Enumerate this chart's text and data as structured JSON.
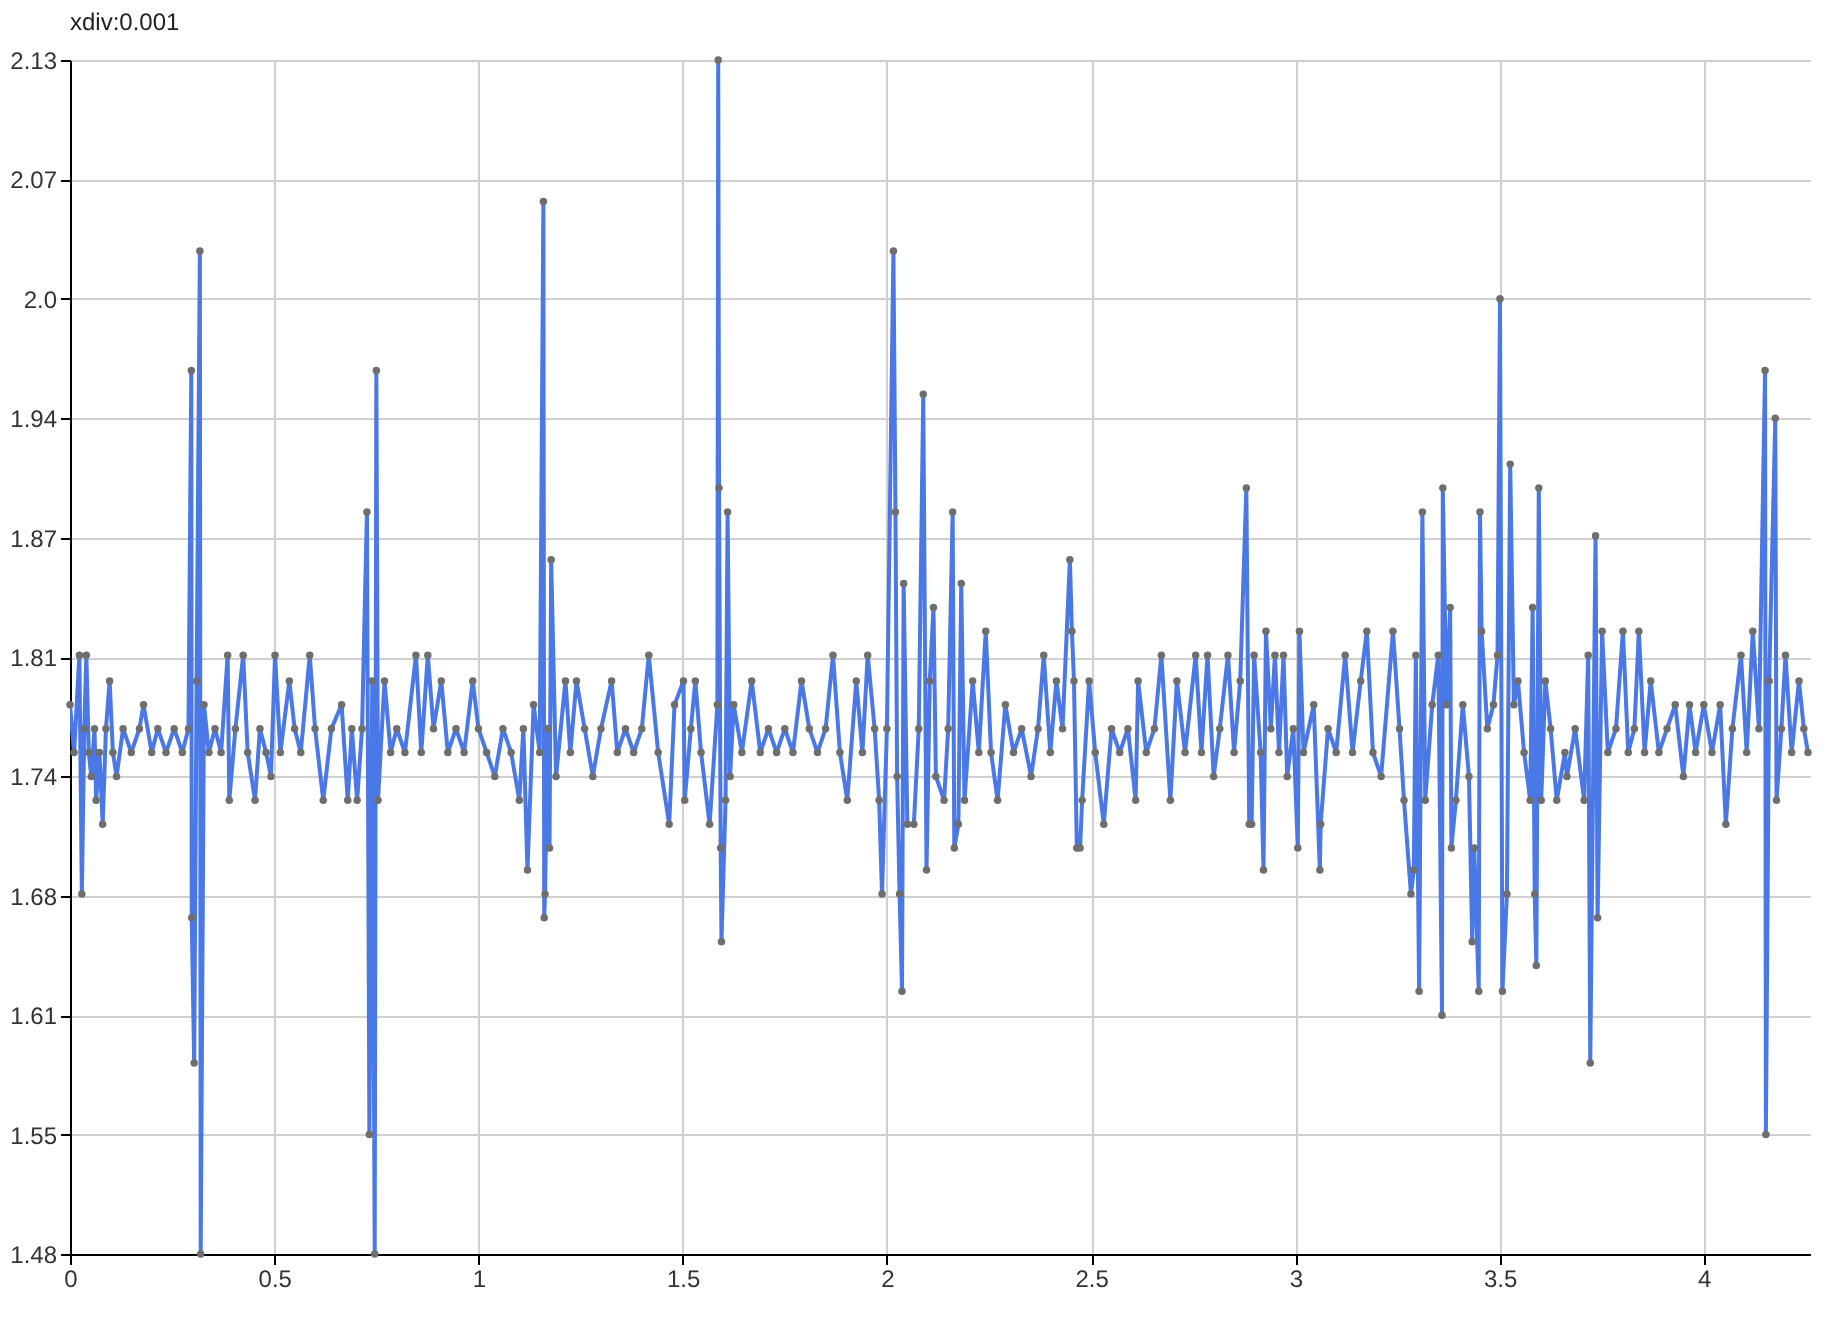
{
  "chart_data": {
    "type": "line",
    "annotations": [
      "xdiv:0.001"
    ],
    "x": [
      0,
      0.01,
      0.023,
      0.029,
      0.035,
      0.04,
      0.046,
      0.052,
      0.06,
      0.064,
      0.072,
      0.08,
      0.088,
      0.097,
      0.105,
      0.114,
      0.13,
      0.15,
      0.17,
      0.18,
      0.2,
      0.215,
      0.235,
      0.255,
      0.275,
      0.29,
      0.297,
      0.298,
      0.304,
      0.31,
      0.318,
      0.32,
      0.328,
      0.34,
      0.355,
      0.37,
      0.386,
      0.39,
      0.405,
      0.424,
      0.435,
      0.453,
      0.465,
      0.48,
      0.492,
      0.502,
      0.515,
      0.537,
      0.55,
      0.565,
      0.587,
      0.6,
      0.62,
      0.64,
      0.665,
      0.68,
      0.69,
      0.703,
      0.715,
      0.727,
      0.733,
      0.74,
      0.746,
      0.75,
      0.754,
      0.77,
      0.785,
      0.8,
      0.82,
      0.847,
      0.86,
      0.876,
      0.89,
      0.909,
      0.925,
      0.945,
      0.965,
      0.986,
      1,
      1.02,
      1.04,
      1.06,
      1.08,
      1.1,
      1.11,
      1.12,
      1.135,
      1.15,
      1.159,
      1.161,
      1.163,
      1.17,
      1.174,
      1.178,
      1.19,
      1.213,
      1.225,
      1.24,
      1.26,
      1.28,
      1.3,
      1.326,
      1.34,
      1.36,
      1.38,
      1.4,
      1.417,
      1.44,
      1.467,
      1.48,
      1.502,
      1.505,
      1.52,
      1.531,
      1.545,
      1.566,
      1.585,
      1.587,
      1.589,
      1.593,
      1.595,
      1.605,
      1.61,
      1.616,
      1.625,
      1.645,
      1.669,
      1.69,
      1.71,
      1.73,
      1.75,
      1.77,
      1.791,
      1.81,
      1.83,
      1.85,
      1.868,
      1.885,
      1.903,
      1.925,
      1.94,
      1.953,
      1.97,
      1.981,
      1.988,
      2,
      2.016,
      2.021,
      2.025,
      2.031,
      2.037,
      2.041,
      2.05,
      2.066,
      2.078,
      2.089,
      2.097,
      2.105,
      2.114,
      2.12,
      2.14,
      2.15,
      2.161,
      2.165,
      2.175,
      2.182,
      2.19,
      2.21,
      2.225,
      2.242,
      2.255,
      2.271,
      2.29,
      2.31,
      2.33,
      2.353,
      2.37,
      2.384,
      2.4,
      2.415,
      2.43,
      2.448,
      2.453,
      2.458,
      2.465,
      2.473,
      2.478,
      2.495,
      2.51,
      2.531,
      2.55,
      2.57,
      2.59,
      2.609,
      2.615,
      2.635,
      2.655,
      2.672,
      2.694,
      2.71,
      2.73,
      2.756,
      2.77,
      2.785,
      2.8,
      2.815,
      2.835,
      2.85,
      2.865,
      2.88,
      2.887,
      2.893,
      2.899,
      2.915,
      2.922,
      2.928,
      2.94,
      2.95,
      2.96,
      2.971,
      2.98,
      2.995,
      3.006,
      3.01,
      3.02,
      3.045,
      3.06,
      3.062,
      3.08,
      3.1,
      3.122,
      3.14,
      3.16,
      3.175,
      3.19,
      3.21,
      3.239,
      3.255,
      3.266,
      3.283,
      3.29,
      3.295,
      3.303,
      3.311,
      3.318,
      3.335,
      3.35,
      3.359,
      3.361,
      3.37,
      3.379,
      3.382,
      3.393,
      3.41,
      3.425,
      3.433,
      3.438,
      3.449,
      3.452,
      3.456,
      3.47,
      3.485,
      3.495,
      3.501,
      3.507,
      3.518,
      3.526,
      3.535,
      3.545,
      3.56,
      3.575,
      3.581,
      3.586,
      3.59,
      3.596,
      3.602,
      3.612,
      3.625,
      3.64,
      3.66,
      3.665,
      3.685,
      3.707,
      3.717,
      3.722,
      3.735,
      3.74,
      3.751,
      3.765,
      3.785,
      3.802,
      3.815,
      3.83,
      3.841,
      3.855,
      3.87,
      3.89,
      3.91,
      3.93,
      3.95,
      3.965,
      3.98,
      4,
      4.02,
      4.04,
      4.054,
      4.07,
      4.091,
      4.105,
      4.12,
      4.135,
      4.15,
      4.152,
      4.16,
      4.175,
      4.178,
      4.19,
      4.2,
      4.215,
      4.233,
      4.245,
      4.255
    ],
    "series": [
      {
        "color": "#4a78e6",
        "values": [
          1.779,
          1.753,
          1.806,
          1.676,
          1.766,
          1.806,
          1.753,
          1.74,
          1.766,
          1.727,
          1.753,
          1.714,
          1.766,
          1.792,
          1.753,
          1.74,
          1.766,
          1.753,
          1.766,
          1.779,
          1.753,
          1.766,
          1.753,
          1.766,
          1.753,
          1.766,
          1.961,
          1.663,
          1.584,
          1.792,
          2.026,
          1.48,
          1.779,
          1.753,
          1.766,
          1.753,
          1.806,
          1.727,
          1.766,
          1.806,
          1.753,
          1.727,
          1.766,
          1.753,
          1.74,
          1.806,
          1.753,
          1.792,
          1.766,
          1.753,
          1.806,
          1.766,
          1.727,
          1.766,
          1.779,
          1.727,
          1.766,
          1.727,
          1.766,
          1.884,
          1.545,
          1.792,
          1.48,
          1.961,
          1.727,
          1.792,
          1.753,
          1.766,
          1.753,
          1.806,
          1.753,
          1.806,
          1.766,
          1.792,
          1.753,
          1.766,
          1.753,
          1.792,
          1.766,
          1.753,
          1.74,
          1.766,
          1.753,
          1.727,
          1.766,
          1.689,
          1.779,
          1.753,
          2.053,
          1.663,
          1.676,
          1.766,
          1.701,
          1.858,
          1.74,
          1.792,
          1.753,
          1.792,
          1.766,
          1.74,
          1.766,
          1.792,
          1.753,
          1.766,
          1.753,
          1.766,
          1.806,
          1.753,
          1.714,
          1.779,
          1.792,
          1.727,
          1.766,
          1.792,
          1.753,
          1.714,
          1.779,
          2.13,
          1.897,
          1.701,
          1.65,
          1.727,
          1.884,
          1.74,
          1.779,
          1.753,
          1.792,
          1.753,
          1.766,
          1.753,
          1.766,
          1.753,
          1.792,
          1.766,
          1.753,
          1.766,
          1.806,
          1.753,
          1.727,
          1.792,
          1.753,
          1.806,
          1.766,
          1.727,
          1.676,
          1.766,
          2.026,
          1.884,
          1.74,
          1.676,
          1.623,
          1.845,
          1.714,
          1.714,
          1.766,
          1.948,
          1.689,
          1.792,
          1.832,
          1.74,
          1.727,
          1.766,
          1.884,
          1.701,
          1.714,
          1.845,
          1.727,
          1.792,
          1.753,
          1.819,
          1.753,
          1.727,
          1.779,
          1.753,
          1.766,
          1.74,
          1.766,
          1.806,
          1.753,
          1.792,
          1.766,
          1.858,
          1.819,
          1.792,
          1.701,
          1.701,
          1.727,
          1.792,
          1.753,
          1.714,
          1.766,
          1.753,
          1.766,
          1.727,
          1.792,
          1.753,
          1.766,
          1.806,
          1.727,
          1.792,
          1.753,
          1.806,
          1.753,
          1.806,
          1.74,
          1.766,
          1.806,
          1.753,
          1.792,
          1.897,
          1.714,
          1.714,
          1.806,
          1.753,
          1.689,
          1.819,
          1.766,
          1.806,
          1.753,
          1.806,
          1.74,
          1.766,
          1.701,
          1.819,
          1.753,
          1.779,
          1.689,
          1.714,
          1.766,
          1.753,
          1.806,
          1.753,
          1.792,
          1.819,
          1.753,
          1.74,
          1.819,
          1.766,
          1.727,
          1.676,
          1.689,
          1.806,
          1.623,
          1.884,
          1.727,
          1.779,
          1.806,
          1.61,
          1.897,
          1.779,
          1.832,
          1.701,
          1.727,
          1.779,
          1.74,
          1.65,
          1.701,
          1.623,
          1.884,
          1.819,
          1.766,
          1.779,
          1.806,
          2,
          1.623,
          1.676,
          1.91,
          1.779,
          1.792,
          1.753,
          1.727,
          1.832,
          1.676,
          1.637,
          1.897,
          1.727,
          1.792,
          1.766,
          1.727,
          1.753,
          1.74,
          1.766,
          1.727,
          1.806,
          1.584,
          1.871,
          1.663,
          1.819,
          1.753,
          1.766,
          1.819,
          1.753,
          1.766,
          1.819,
          1.753,
          1.792,
          1.753,
          1.766,
          1.779,
          1.74,
          1.779,
          1.753,
          1.779,
          1.753,
          1.779,
          1.714,
          1.766,
          1.806,
          1.753,
          1.819,
          1.766,
          1.961,
          1.545,
          1.792,
          1.935,
          1.727,
          1.766,
          1.806,
          1.753,
          1.792,
          1.766,
          1.753
        ]
      }
    ],
    "xlim": [
      0,
      4.26
    ],
    "xticks": [
      0,
      0.5,
      1,
      1.5,
      2,
      2.5,
      3,
      3.5,
      4
    ],
    "ylim": [
      1.48,
      2.13
    ],
    "yticks": [
      1.48,
      {
        "value": 1.545,
        "label": "1.55"
      },
      1.61,
      {
        "value": 1.675,
        "label": "1.68"
      },
      1.74,
      {
        "value": 1.805,
        "label": "1.81"
      },
      1.87,
      {
        "value": 1.935,
        "label": "1.94"
      },
      {
        "value": 2,
        "label": "2.0"
      },
      {
        "value": 2.065,
        "label": "2.07"
      },
      2.13
    ],
    "grid": true,
    "marker": "circle"
  }
}
